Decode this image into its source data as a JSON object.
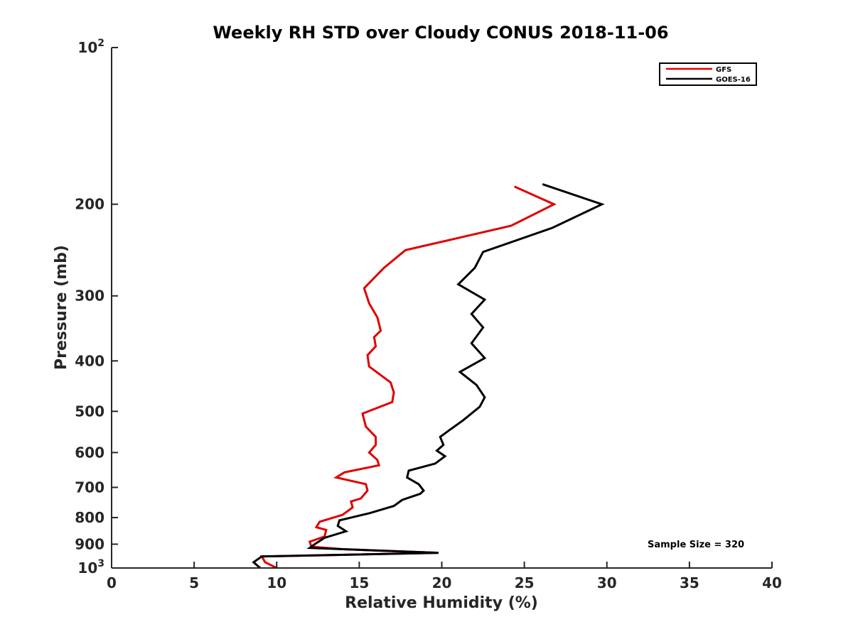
{
  "chart_data": {
    "type": "line",
    "title": "Weekly RH STD over Cloudy CONUS 2018-11-06",
    "xlabel": "Relative Humidity (%)",
    "ylabel": "Pressure (mb)",
    "xlim": [
      0,
      40
    ],
    "ylim": [
      100,
      1000
    ],
    "y_scale": "log",
    "y_reversed": true,
    "grid": false,
    "legend_position": "top-right",
    "x_ticks": [
      0,
      5,
      10,
      15,
      20,
      25,
      30,
      35,
      40
    ],
    "x_tick_labels": [
      "0",
      "5",
      "10",
      "15",
      "20",
      "25",
      "30",
      "35",
      "40"
    ],
    "y_ticks": [
      100,
      200,
      300,
      400,
      500,
      600,
      700,
      800,
      900,
      1000
    ],
    "y_tick_labels": [
      {
        "base": "10",
        "exp": "2"
      },
      {
        "base": "200",
        "exp": ""
      },
      {
        "base": "300",
        "exp": ""
      },
      {
        "base": "400",
        "exp": ""
      },
      {
        "base": "500",
        "exp": ""
      },
      {
        "base": "600",
        "exp": ""
      },
      {
        "base": "700",
        "exp": ""
      },
      {
        "base": "800",
        "exp": ""
      },
      {
        "base": "900",
        "exp": ""
      },
      {
        "base": "10",
        "exp": "3"
      }
    ],
    "series": [
      {
        "name": "GFS",
        "color": "#e00000",
        "x": [
          24.4,
          26.8,
          24.2,
          17.8,
          16.5,
          15.3,
          15.6,
          16.1,
          16.3,
          15.9,
          16.0,
          15.5,
          15.6,
          16.9,
          17.1,
          17.0,
          15.2,
          15.4,
          16.0,
          16.0,
          15.6,
          16.1,
          16.2,
          14.1,
          13.6,
          15.4,
          15.5,
          15.1,
          14.5,
          14.6,
          14.0,
          12.6,
          12.4,
          13.0,
          12.9,
          12.0,
          12.1,
          14.0,
          19.8,
          9.1,
          9.3,
          10.0
        ],
        "y": [
          185,
          200,
          220,
          245,
          265,
          290,
          310,
          330,
          350,
          360,
          375,
          390,
          410,
          440,
          460,
          480,
          505,
          535,
          560,
          580,
          600,
          620,
          635,
          655,
          670,
          690,
          710,
          735,
          745,
          765,
          790,
          815,
          835,
          845,
          870,
          890,
          910,
          920,
          935,
          950,
          975,
          1000
        ]
      },
      {
        "name": "GOES-16",
        "color": "#000000",
        "x": [
          26.1,
          29.7,
          26.7,
          22.5,
          22.0,
          21.0,
          22.6,
          21.8,
          22.5,
          21.8,
          22.6,
          21.1,
          22.1,
          22.6,
          22.3,
          21.3,
          20.4,
          19.9,
          20.1,
          19.7,
          20.2,
          19.6,
          18.0,
          17.9,
          18.6,
          18.9,
          18.7,
          17.6,
          17.1,
          15.6,
          13.8,
          13.7,
          14.2,
          12.9,
          12.3,
          12.0,
          14.0,
          19.8,
          9.1,
          8.6,
          9.0
        ],
        "y": [
          183,
          200,
          222,
          247,
          265,
          285,
          305,
          325,
          345,
          370,
          395,
          420,
          445,
          470,
          490,
          520,
          545,
          560,
          580,
          595,
          610,
          630,
          650,
          670,
          690,
          710,
          720,
          740,
          760,
          785,
          810,
          830,
          850,
          875,
          900,
          915,
          920,
          935,
          950,
          975,
          1000
        ]
      }
    ],
    "annotations": [
      "Sample Size = 320"
    ]
  }
}
